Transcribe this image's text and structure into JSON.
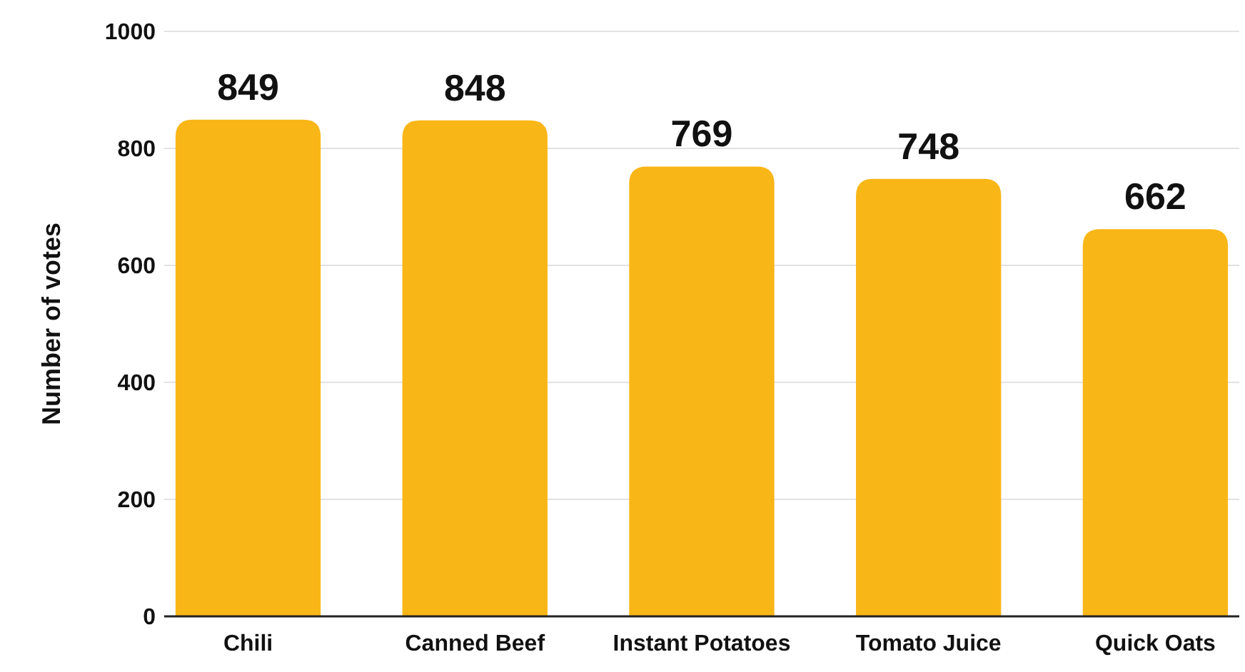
{
  "chart_data": {
    "type": "bar",
    "ylabel": "Number of votes",
    "categories": [
      "Chili",
      "Canned Beef",
      "Instant Potatoes",
      "Tomato Juice",
      "Quick Oats"
    ],
    "values": [
      849,
      848,
      769,
      748,
      662
    ],
    "color": "#f9b617",
    "ylim": [
      0,
      1000
    ],
    "yticks": [
      0,
      200,
      400,
      600,
      800,
      1000
    ],
    "grid": "y",
    "data_labels": true
  }
}
